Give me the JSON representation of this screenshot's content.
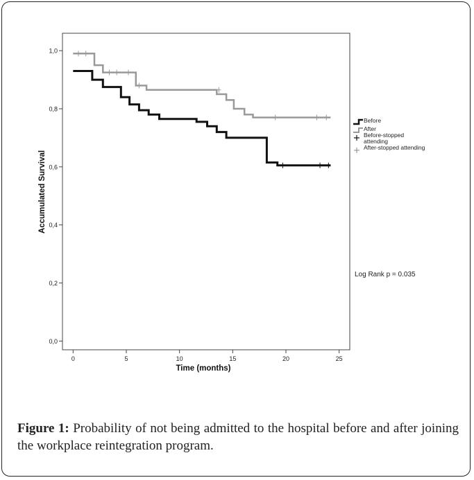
{
  "figure": {
    "label": "Figure 1:",
    "caption": "Probability of not being admitted to the hospital before and after joining the workplace reintegration program."
  },
  "chart_data": {
    "type": "line",
    "subtype": "kaplan-meier",
    "title": "",
    "xlabel": "Time (months)",
    "ylabel": "Accumulated Survival",
    "xlim": [
      -1,
      26
    ],
    "ylim": [
      -0.03,
      1.06
    ],
    "xticks": [
      0,
      5,
      10,
      15,
      20,
      25
    ],
    "xtick_labels": [
      "0",
      "5",
      "10",
      "15",
      "20",
      "25"
    ],
    "yticks": [
      0,
      0.2,
      0.4,
      0.6,
      0.8,
      1.0
    ],
    "ytick_labels": [
      "0,0",
      "0,2",
      "0,4",
      "0,6",
      "0,8",
      "1,0"
    ],
    "grid": false,
    "legend_position": "right",
    "annotation": "Log Rank p = 0.035",
    "legend": [
      {
        "label": "Before",
        "marker": "line",
        "color": "#111111"
      },
      {
        "label": "After",
        "marker": "line",
        "color": "#999999"
      },
      {
        "label": "Before-stopped attending",
        "marker": "plus",
        "color": "#111111"
      },
      {
        "label": "After-stopped attending",
        "marker": "plus",
        "color": "#999999"
      }
    ],
    "series": [
      {
        "name": "Before",
        "color": "#111111",
        "width": 3,
        "steps": [
          [
            0,
            0.93
          ],
          [
            1.8,
            0.93
          ],
          [
            1.8,
            0.9
          ],
          [
            2.8,
            0.9
          ],
          [
            2.8,
            0.875
          ],
          [
            4.5,
            0.875
          ],
          [
            4.5,
            0.84
          ],
          [
            5.3,
            0.84
          ],
          [
            5.3,
            0.815
          ],
          [
            6.2,
            0.815
          ],
          [
            6.2,
            0.795
          ],
          [
            7.1,
            0.795
          ],
          [
            7.1,
            0.78
          ],
          [
            8.1,
            0.78
          ],
          [
            8.1,
            0.765
          ],
          [
            11.6,
            0.765
          ],
          [
            11.6,
            0.755
          ],
          [
            12.6,
            0.755
          ],
          [
            12.6,
            0.74
          ],
          [
            13.5,
            0.74
          ],
          [
            13.5,
            0.72
          ],
          [
            14.4,
            0.72
          ],
          [
            14.4,
            0.7
          ],
          [
            16.3,
            0.7
          ],
          [
            16.3,
            0.7
          ],
          [
            18.2,
            0.7
          ],
          [
            18.2,
            0.615
          ],
          [
            19.2,
            0.615
          ],
          [
            19.2,
            0.605
          ],
          [
            24.2,
            0.605
          ]
        ],
        "censored": [
          [
            19.7,
            0.605
          ],
          [
            23.2,
            0.605
          ],
          [
            24.0,
            0.605
          ]
        ]
      },
      {
        "name": "After",
        "color": "#999999",
        "width": 2.5,
        "steps": [
          [
            0,
            0.99
          ],
          [
            2,
            0.99
          ],
          [
            2,
            0.95
          ],
          [
            2.8,
            0.95
          ],
          [
            2.8,
            0.925
          ],
          [
            5.9,
            0.925
          ],
          [
            5.9,
            0.88
          ],
          [
            6.9,
            0.88
          ],
          [
            6.9,
            0.865
          ],
          [
            13.5,
            0.865
          ],
          [
            13.5,
            0.85
          ],
          [
            14.4,
            0.85
          ],
          [
            14.4,
            0.83
          ],
          [
            15.1,
            0.83
          ],
          [
            15.1,
            0.8
          ],
          [
            16.1,
            0.8
          ],
          [
            16.1,
            0.78
          ],
          [
            16.9,
            0.78
          ],
          [
            16.9,
            0.77
          ],
          [
            24.2,
            0.77
          ]
        ],
        "censored": [
          [
            0.5,
            0.99
          ],
          [
            1.2,
            0.99
          ],
          [
            3.4,
            0.925
          ],
          [
            4.1,
            0.925
          ],
          [
            5.2,
            0.925
          ],
          [
            6.2,
            0.88
          ],
          [
            13.7,
            0.865
          ],
          [
            19.0,
            0.77
          ],
          [
            22.9,
            0.77
          ],
          [
            23.8,
            0.77
          ]
        ]
      }
    ]
  }
}
